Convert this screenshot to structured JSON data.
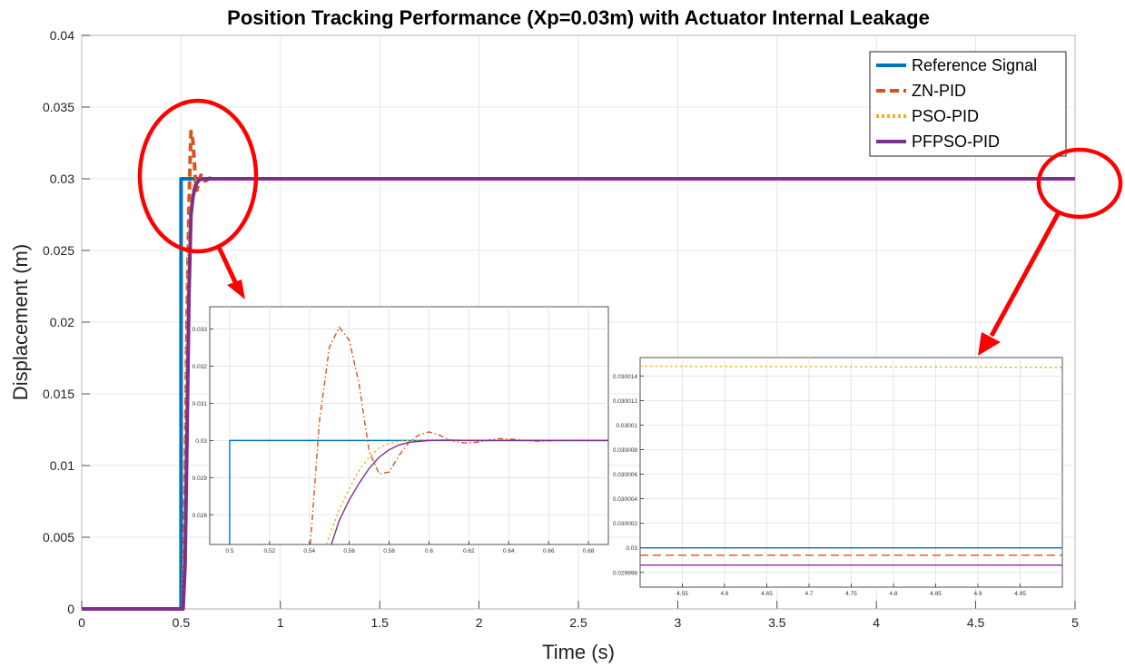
{
  "figure": {
    "title": "Position Tracking Performance (Xp=0.03m) with Actuator Internal Leakage",
    "xlabel": "Time (s)",
    "ylabel": "Displacement (m)"
  },
  "chart_data": [
    {
      "type": "line",
      "title": "Position Tracking Performance (Xp=0.03m) with Actuator Internal Leakage",
      "xlabel": "Time (s)",
      "ylabel": "Displacement (m)",
      "xlim": [
        0,
        5
      ],
      "ylim": [
        0,
        0.04
      ],
      "xticks": [
        "0",
        "0.5",
        "1",
        "1.5",
        "2",
        "2.5",
        "3",
        "3.5",
        "4",
        "4.5",
        "5"
      ],
      "yticks": [
        "0",
        "0.005",
        "0.01",
        "0.015",
        "0.02",
        "0.025",
        "0.03",
        "0.035",
        "0.04"
      ],
      "grid": true,
      "legend_position": "top-right",
      "series": [
        {
          "name": "Reference Signal",
          "color": "#0072BD",
          "style": "solid",
          "x": [
            0,
            0.5,
            0.5,
            5
          ],
          "y": [
            0,
            0,
            0.03,
            0.03
          ]
        },
        {
          "name": "ZN-PID",
          "color": "#D95319",
          "style": "dashed",
          "x": [
            0,
            0.51,
            0.52,
            0.53,
            0.54,
            0.545,
            0.55,
            0.56,
            0.57,
            0.575,
            0.58,
            0.59,
            0.6,
            0.61,
            0.62,
            0.63,
            0.64,
            0.65,
            0.67,
            0.7,
            5
          ],
          "y": [
            0,
            0,
            0.008,
            0.02,
            0.028,
            0.031,
            0.0333,
            0.0326,
            0.0305,
            0.0292,
            0.0292,
            0.02985,
            0.03025,
            0.0301,
            0.02985,
            0.0299,
            0.03003,
            0.03003,
            0.03,
            0.03,
            0.03
          ]
        },
        {
          "name": "PSO-PID",
          "color": "#EDB120",
          "style": "dotted",
          "x": [
            0,
            0.51,
            0.52,
            0.53,
            0.54,
            0.55,
            0.56,
            0.57,
            0.58,
            0.59,
            0.6,
            0.62,
            0.65,
            0.7,
            5
          ],
          "y": [
            0,
            0,
            0.005,
            0.017,
            0.025,
            0.0279,
            0.0291,
            0.0296,
            0.0298,
            0.0299,
            0.02998,
            0.03,
            0.03,
            0.03,
            0.03
          ]
        },
        {
          "name": "PFPSO-PID",
          "color": "#7E2F8E",
          "style": "solid",
          "x": [
            0,
            0.51,
            0.52,
            0.53,
            0.54,
            0.55,
            0.56,
            0.57,
            0.58,
            0.59,
            0.6,
            0.62,
            0.65,
            0.7,
            5
          ],
          "y": [
            0,
            0,
            0.003,
            0.012,
            0.022,
            0.0275,
            0.0287,
            0.0294,
            0.0297,
            0.0299,
            0.02997,
            0.03,
            0.03,
            0.03,
            0.03
          ]
        }
      ]
    },
    {
      "type": "line",
      "title": "",
      "xlim": [
        0.49,
        0.69
      ],
      "ylim": [
        0.0272,
        0.0336
      ],
      "xticks": [
        "0.5",
        "0.52",
        "0.54",
        "0.56",
        "0.58",
        "0.6",
        "0.62",
        "0.64",
        "0.66",
        "0.68"
      ],
      "yticks": [
        "0.028",
        "0.029",
        "0.03",
        "0.031",
        "0.032",
        "0.033"
      ],
      "grid": true,
      "series": [
        {
          "name": "",
          "color": "#0072BD",
          "style": "solid",
          "x": [
            0.5,
            0.5,
            0.69
          ],
          "y": [
            0.0272,
            0.03,
            0.03
          ]
        },
        {
          "name": "",
          "color": "#D95319",
          "style": "dashdot",
          "x": [
            0.5405,
            0.545,
            0.55,
            0.555,
            0.56,
            0.565,
            0.57,
            0.575,
            0.58,
            0.585,
            0.59,
            0.595,
            0.6,
            0.605,
            0.61,
            0.615,
            0.62,
            0.625,
            0.63,
            0.635,
            0.64,
            0.645,
            0.65,
            0.655,
            0.66,
            0.665,
            0.67,
            0.69
          ],
          "y": [
            0.0272,
            0.0305,
            0.0325,
            0.03305,
            0.0327,
            0.0315,
            0.0297,
            0.0291,
            0.02915,
            0.0296,
            0.02995,
            0.03015,
            0.03023,
            0.03015,
            0.03002,
            0.02995,
            0.02993,
            0.02996,
            0.03001,
            0.03005,
            0.03004,
            0.03002,
            0.02999,
            0.02998,
            0.02999,
            0.03,
            0.03,
            0.03
          ]
        },
        {
          "name": "",
          "color": "#EDB120",
          "style": "dotted",
          "x": [
            0.5485,
            0.555,
            0.56,
            0.565,
            0.57,
            0.575,
            0.58,
            0.585,
            0.59,
            0.6,
            0.61,
            0.62,
            0.69
          ],
          "y": [
            0.0272,
            0.02815,
            0.0287,
            0.0292,
            0.02955,
            0.0298,
            0.02992,
            0.02998,
            0.03,
            0.03002,
            0.03001,
            0.03,
            0.03
          ]
        },
        {
          "name": "",
          "color": "#7E2F8E",
          "style": "solid",
          "x": [
            0.551,
            0.555,
            0.56,
            0.565,
            0.57,
            0.575,
            0.58,
            0.585,
            0.59,
            0.6,
            0.61,
            0.62,
            0.69
          ],
          "y": [
            0.0272,
            0.02785,
            0.0284,
            0.02885,
            0.02925,
            0.02955,
            0.02975,
            0.02988,
            0.02995,
            0.03,
            0.03001,
            0.03,
            0.03
          ]
        }
      ]
    },
    {
      "type": "line",
      "title": "",
      "xlim": [
        4.5,
        5.0
      ],
      "ylim": [
        0.0299968,
        0.0300155
      ],
      "xticks": [
        "4.55",
        "4.6",
        "4.65",
        "4.7",
        "4.75",
        "4.8",
        "4.85",
        "4.9",
        "4.95"
      ],
      "yticks": [
        "0.029998",
        "0.03",
        "0.030002",
        "0.030004",
        "0.030006",
        "0.030008",
        "0.03001",
        "0.030012",
        "0.030014"
      ],
      "grid": true,
      "series": [
        {
          "name": "",
          "color": "#0072BD",
          "style": "solid",
          "x": [
            4.5,
            5.0
          ],
          "y": [
            0.03,
            0.03
          ]
        },
        {
          "name": "",
          "color": "#D95319",
          "style": "dashed",
          "x": [
            4.5,
            5.0
          ],
          "y": [
            0.0299994,
            0.0299994
          ]
        },
        {
          "name": "",
          "color": "#EDB120",
          "style": "dotted",
          "x": [
            4.5,
            5.0
          ],
          "y": [
            0.0300148,
            0.0300147
          ]
        },
        {
          "name": "",
          "color": "#7E2F8E",
          "style": "solid",
          "x": [
            4.5,
            5.0
          ],
          "y": [
            0.0299986,
            0.0299986
          ]
        }
      ]
    }
  ]
}
